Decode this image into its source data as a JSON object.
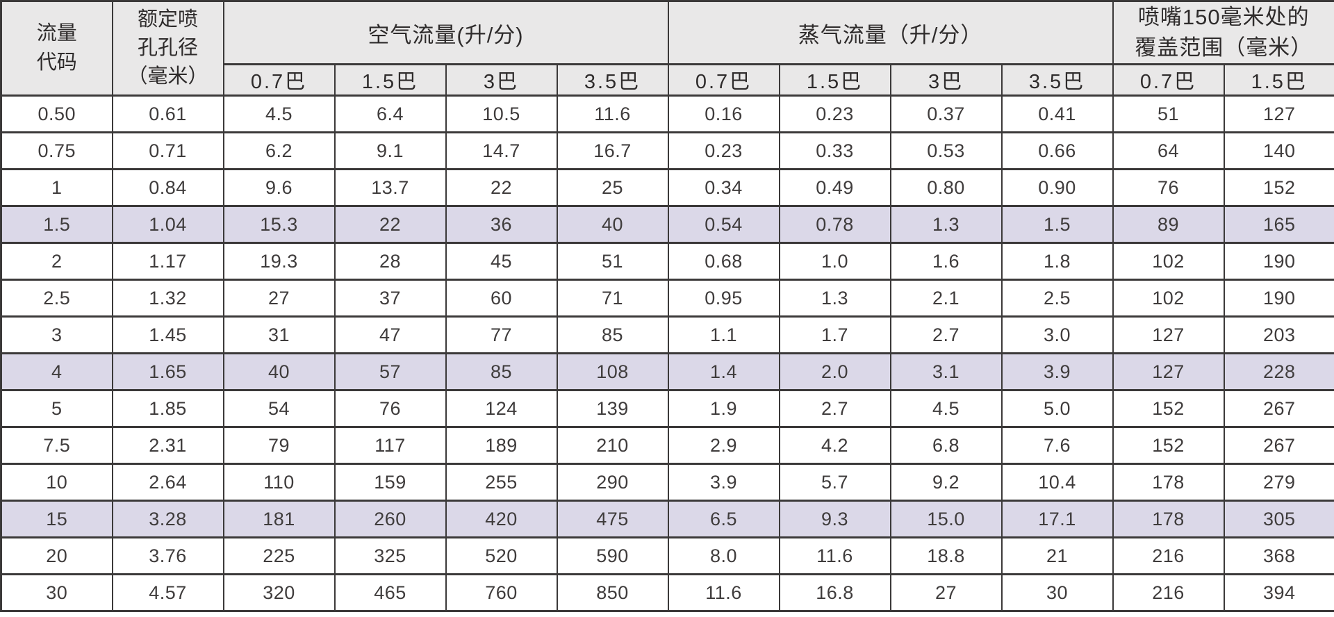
{
  "header": {
    "flow_code": "流量\n代码",
    "orifice": "额定喷\n孔孔径\n（毫米）",
    "air": {
      "title": "空气流量(升/分)",
      "pressures": [
        "0.7巴",
        "1.5巴",
        "3巴",
        "3.5巴"
      ]
    },
    "steam": {
      "title": "蒸气流量（升/分）",
      "pressures": [
        "0.7巴",
        "1.5巴",
        "3巴",
        "3.5巴"
      ]
    },
    "coverage": {
      "title": "喷嘴150毫米处的\n覆盖范围（毫米）",
      "pressures": [
        "0.7巴",
        "1.5巴"
      ]
    }
  },
  "chart_data": {
    "type": "table",
    "columns": [
      "流量代码",
      "额定喷孔孔径（毫米）",
      "空气流量(升/分) 0.7巴",
      "空气流量(升/分) 1.5巴",
      "空气流量(升/分) 3巴",
      "空气流量(升/分) 3.5巴",
      "蒸气流量（升/分） 0.7巴",
      "蒸气流量（升/分） 1.5巴",
      "蒸气流量（升/分） 3巴",
      "蒸气流量（升/分） 3.5巴",
      "喷嘴150毫米处的覆盖范围（毫米） 0.7巴",
      "喷嘴150毫米处的覆盖范围（毫米） 1.5巴"
    ],
    "rows": [
      [
        "0.50",
        "0.61",
        "4.5",
        "6.4",
        "10.5",
        "11.6",
        "0.16",
        "0.23",
        "0.37",
        "0.41",
        "51",
        "127"
      ],
      [
        "0.75",
        "0.71",
        "6.2",
        "9.1",
        "14.7",
        "16.7",
        "0.23",
        "0.33",
        "0.53",
        "0.66",
        "64",
        "140"
      ],
      [
        "1",
        "0.84",
        "9.6",
        "13.7",
        "22",
        "25",
        "0.34",
        "0.49",
        "0.80",
        "0.90",
        "76",
        "152"
      ],
      [
        "1.5",
        "1.04",
        "15.3",
        "22",
        "36",
        "40",
        "0.54",
        "0.78",
        "1.3",
        "1.5",
        "89",
        "165"
      ],
      [
        "2",
        "1.17",
        "19.3",
        "28",
        "45",
        "51",
        "0.68",
        "1.0",
        "1.6",
        "1.8",
        "102",
        "190"
      ],
      [
        "2.5",
        "1.32",
        "27",
        "37",
        "60",
        "71",
        "0.95",
        "1.3",
        "2.1",
        "2.5",
        "102",
        "190"
      ],
      [
        "3",
        "1.45",
        "31",
        "47",
        "77",
        "85",
        "1.1",
        "1.7",
        "2.7",
        "3.0",
        "127",
        "203"
      ],
      [
        "4",
        "1.65",
        "40",
        "57",
        "85",
        "108",
        "1.4",
        "2.0",
        "3.1",
        "3.9",
        "127",
        "228"
      ],
      [
        "5",
        "1.85",
        "54",
        "76",
        "124",
        "139",
        "1.9",
        "2.7",
        "4.5",
        "5.0",
        "152",
        "267"
      ],
      [
        "7.5",
        "2.31",
        "79",
        "117",
        "189",
        "210",
        "2.9",
        "4.2",
        "6.8",
        "7.6",
        "152",
        "267"
      ],
      [
        "10",
        "2.64",
        "110",
        "159",
        "255",
        "290",
        "3.9",
        "5.7",
        "9.2",
        "10.4",
        "178",
        "279"
      ],
      [
        "15",
        "3.28",
        "181",
        "260",
        "420",
        "475",
        "6.5",
        "9.3",
        "15.0",
        "17.1",
        "178",
        "305"
      ],
      [
        "20",
        "3.76",
        "225",
        "325",
        "520",
        "590",
        "8.0",
        "11.6",
        "18.8",
        "21",
        "216",
        "368"
      ],
      [
        "30",
        "4.57",
        "320",
        "465",
        "760",
        "850",
        "11.6",
        "16.8",
        "27",
        "30",
        "216",
        "394"
      ]
    ],
    "highlighted_row_indexes": [
      3,
      7,
      11
    ],
    "layout": {
      "grid": true,
      "header_groups": [
        "空气流量(升/分)",
        "蒸气流量（升/分）",
        "喷嘴150毫米处的覆盖范围（毫米）"
      ]
    }
  },
  "colors": {
    "header_bg": "#e9e8e8",
    "highlight_bg": "#dbd8e8",
    "border": "#3b3939",
    "text": "#3f3c3c"
  }
}
